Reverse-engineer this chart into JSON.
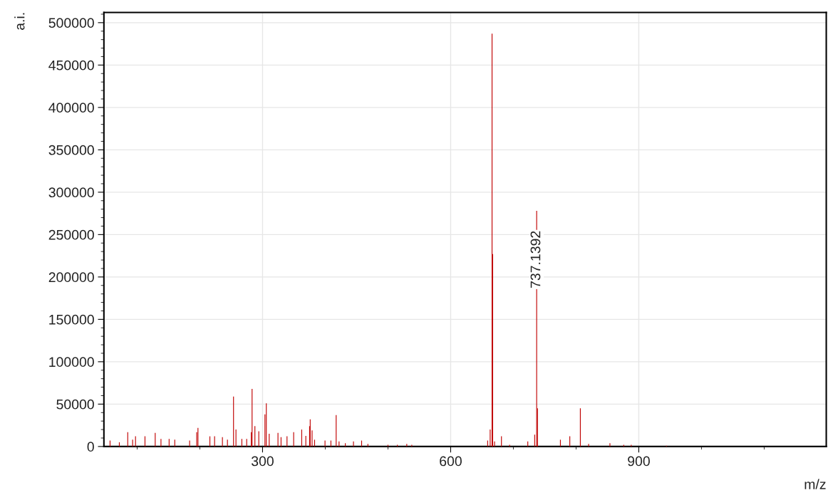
{
  "chart_data": {
    "type": "bar",
    "xlabel": "m/z",
    "ylabel": "a.i.",
    "x": [
      56.8,
      71.6,
      85,
      92.8,
      97.4,
      112.5,
      128.8,
      138,
      151,
      160,
      183.7,
      195,
      197,
      216,
      223.5,
      236,
      244,
      253.7,
      257.6,
      267,
      274.7,
      282,
      283.3,
      287.8,
      294,
      303.8,
      306,
      310.6,
      324.6,
      329.5,
      339,
      349.6,
      362.5,
      369,
      375,
      376,
      379,
      383,
      399.6,
      409,
      417.4,
      422,
      432,
      445,
      458,
      468,
      500,
      515,
      530,
      538,
      659,
      663,
      666,
      667,
      670,
      681,
      694,
      723,
      734,
      737.1392,
      738.5,
      775,
      790,
      806.8,
      820,
      854,
      876,
      888,
      944
    ],
    "series": [
      {
        "color": "#c00000",
        "values": [
          7000,
          5000,
          17000,
          8000,
          12000,
          12000,
          16000,
          9000,
          9000,
          8000,
          7000,
          17000,
          22000,
          12000,
          12000,
          11000,
          8000,
          59000,
          20000,
          9000,
          9000,
          17000,
          68000,
          24000,
          18000,
          38000,
          51000,
          15000,
          16000,
          11000,
          12000,
          17000,
          20000,
          12500,
          24000,
          32000,
          19000,
          8000,
          7000,
          7000,
          37000,
          6000,
          4000,
          6000,
          7000,
          3000,
          2000,
          2000,
          3000,
          2000,
          7000,
          20000,
          487000,
          227000,
          6000,
          12000,
          2000,
          6000,
          14000,
          278000,
          45000,
          8000,
          12000,
          45000,
          3000,
          4000,
          2000,
          2000,
          1000
        ]
      }
    ],
    "xlim": [
      47,
      1199
    ],
    "xticks": [
      {
        "value": 100,
        "label": null
      },
      {
        "value": 200,
        "label": null
      },
      300,
      {
        "value": 400,
        "label": null
      },
      {
        "value": 500,
        "label": null
      },
      600,
      {
        "value": 700,
        "label": null
      },
      {
        "value": 800,
        "label": null
      },
      900,
      {
        "value": 1000,
        "label": null
      },
      {
        "value": 1100,
        "label": null
      }
    ],
    "ylim": [
      0,
      512000
    ],
    "yticks": [
      0,
      50000,
      100000,
      150000,
      200000,
      250000,
      300000,
      350000,
      400000,
      450000,
      500000
    ],
    "grid": true,
    "annotations": [
      {
        "text": "737.1392",
        "x": 737.1392,
        "y": 278000
      }
    ]
  }
}
